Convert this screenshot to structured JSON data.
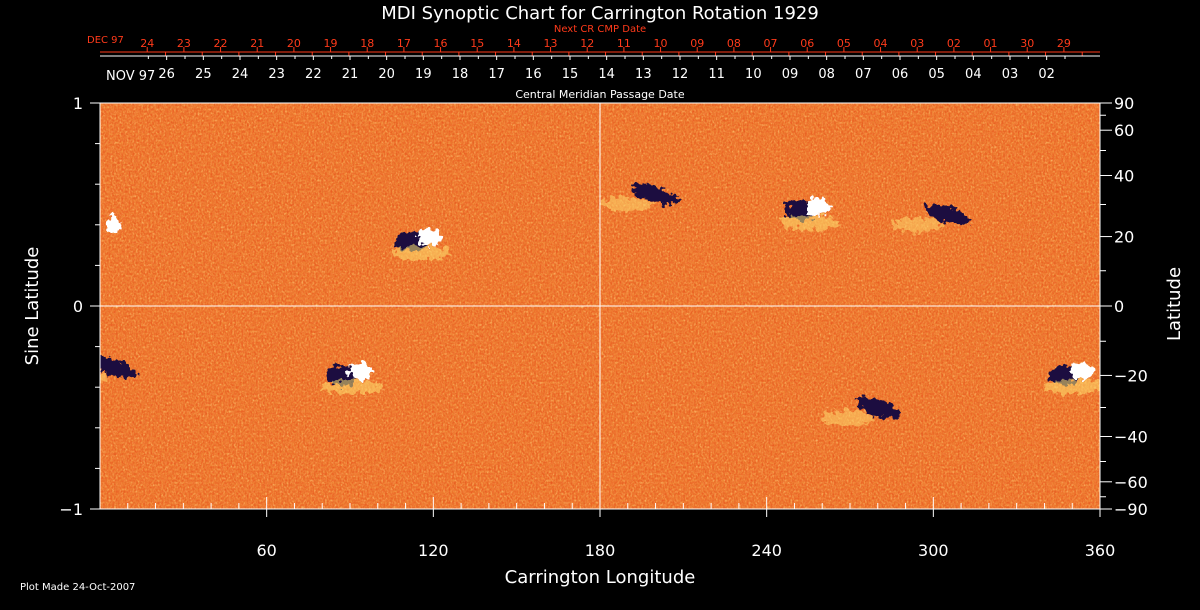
{
  "chart_data": {
    "type": "heatmap",
    "title": "MDI Synoptic Chart for Carrington Rotation 1929",
    "xlabel": "Carrington Longitude",
    "ylabel_left": "Sine Latitude",
    "ylabel_right": "Latitude",
    "xlim": [
      0,
      360
    ],
    "ylim": [
      -1,
      1
    ],
    "x_ticks": [
      60,
      120,
      180,
      240,
      300,
      360
    ],
    "y_ticks_left": [
      {
        "value": 1,
        "label": "1"
      },
      {
        "value": 0,
        "label": "0"
      },
      {
        "value": -1,
        "label": "−1"
      }
    ],
    "y_ticks_right": [
      {
        "deg": 90,
        "label": "90"
      },
      {
        "deg": 60,
        "label": "60"
      },
      {
        "deg": 40,
        "label": "40"
      },
      {
        "deg": 20,
        "label": "20"
      },
      {
        "deg": 0,
        "label": "0"
      },
      {
        "deg": -20,
        "label": "−20"
      },
      {
        "deg": -40,
        "label": "−40"
      },
      {
        "deg": -60,
        "label": "−60"
      },
      {
        "deg": -90,
        "label": "−90"
      }
    ],
    "cmp_axis": {
      "label": "Central Meridian Passage Date",
      "month_label": "NOV 97",
      "dates": [
        "26",
        "25",
        "24",
        "23",
        "22",
        "21",
        "20",
        "19",
        "18",
        "17",
        "16",
        "15",
        "14",
        "13",
        "12",
        "11",
        "10",
        "09",
        "08",
        "07",
        "06",
        "05",
        "04",
        "03",
        "02"
      ],
      "first_longitude": 24,
      "spacing_deg": 13.2
    },
    "next_cr_axis": {
      "label": "Next CR CMP Date",
      "month_label": "DEC 97",
      "dates": [
        "24",
        "23",
        "22",
        "21",
        "20",
        "19",
        "18",
        "17",
        "16",
        "15",
        "14",
        "13",
        "12",
        "11",
        "10",
        "09",
        "08",
        "07",
        "06",
        "05",
        "04",
        "03",
        "02",
        "01",
        "30",
        "29"
      ],
      "first_longitude": 17,
      "spacing_deg": 13.2
    },
    "grid": {
      "vertical_line_at": 180,
      "horizontal_line_at": 0
    },
    "active_regions": [
      {
        "lon": 115,
        "lat": 0.33,
        "polarity": "mixed"
      },
      {
        "lon": 90,
        "lat": -0.33,
        "polarity": "mixed"
      },
      {
        "lon": 255,
        "lat": 0.48,
        "polarity": "mixed"
      },
      {
        "lon": 350,
        "lat": -0.33,
        "polarity": "mixed"
      },
      {
        "lon": 200,
        "lat": 0.55,
        "polarity": "negative"
      },
      {
        "lon": 305,
        "lat": 0.45,
        "polarity": "negative"
      },
      {
        "lon": 280,
        "lat": -0.5,
        "polarity": "negative"
      },
      {
        "lon": 5,
        "lat": -0.3,
        "polarity": "negative"
      },
      {
        "lon": 5,
        "lat": 0.4,
        "polarity": "positive"
      }
    ],
    "colormap": {
      "negative": "#1a1040",
      "background": "#e8501a",
      "positive": "#ffffff"
    }
  },
  "footer": {
    "plot_made": "Plot Made 24-Oct-2007"
  }
}
